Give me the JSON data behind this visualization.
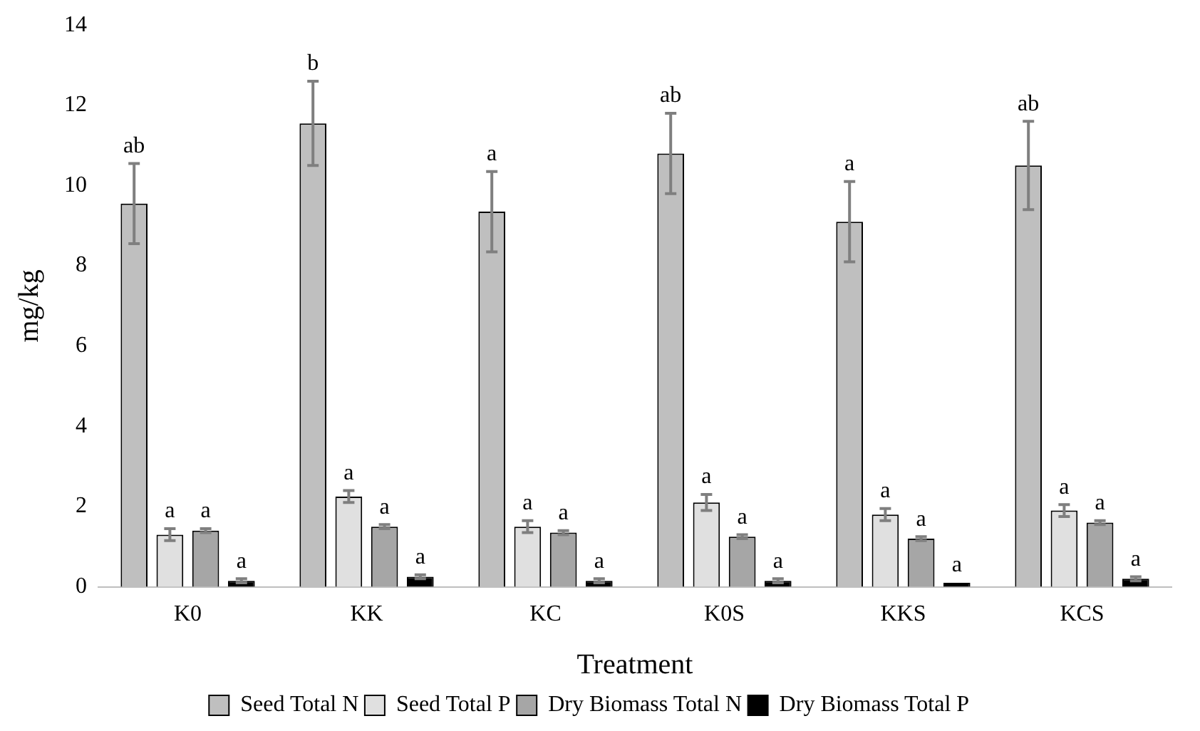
{
  "chart_data": {
    "type": "bar",
    "xlabel": "Treatment",
    "ylabel": "mg/kg",
    "categories": [
      "K0",
      "KK",
      "KC",
      "K0S",
      "KKS",
      "KCS"
    ],
    "ylim": [
      0,
      14
    ],
    "yticks": [
      0,
      2,
      4,
      6,
      8,
      10,
      12,
      14
    ],
    "grid": false,
    "legend": "bottom",
    "series": [
      {
        "name": "Seed Total N",
        "color": "#bfbfbf",
        "values": [
          9.55,
          11.55,
          9.35,
          10.8,
          9.1,
          10.5
        ],
        "errors": [
          1.0,
          1.05,
          1.0,
          1.0,
          1.0,
          1.1
        ],
        "value_labels": [
          "ab",
          "b",
          "a",
          "ab",
          "a",
          "ab"
        ]
      },
      {
        "name": "Seed Total P",
        "color": "#e0e0e0",
        "values": [
          1.3,
          2.25,
          1.5,
          2.1,
          1.8,
          1.9
        ],
        "errors": [
          0.15,
          0.15,
          0.15,
          0.2,
          0.15,
          0.15
        ],
        "value_labels": [
          "a",
          "a",
          "a",
          "a",
          "a",
          "a"
        ]
      },
      {
        "name": "Dry Biomass Total N",
        "color": "#a6a6a6",
        "values": [
          1.4,
          1.5,
          1.35,
          1.25,
          1.2,
          1.6
        ],
        "errors": [
          0.05,
          0.05,
          0.05,
          0.05,
          0.05,
          0.05
        ],
        "value_labels": [
          "a",
          "a",
          "a",
          "a",
          "a",
          "a"
        ]
      },
      {
        "name": "Dry Biomass Total P",
        "color": "#000000",
        "values": [
          0.15,
          0.25,
          0.15,
          0.15,
          0.1,
          0.2
        ],
        "errors": [
          0.05,
          0.05,
          0.05,
          0.05,
          null,
          0.05
        ],
        "value_labels": [
          "a",
          "a",
          "a",
          "a",
          "a",
          "a"
        ]
      }
    ]
  }
}
